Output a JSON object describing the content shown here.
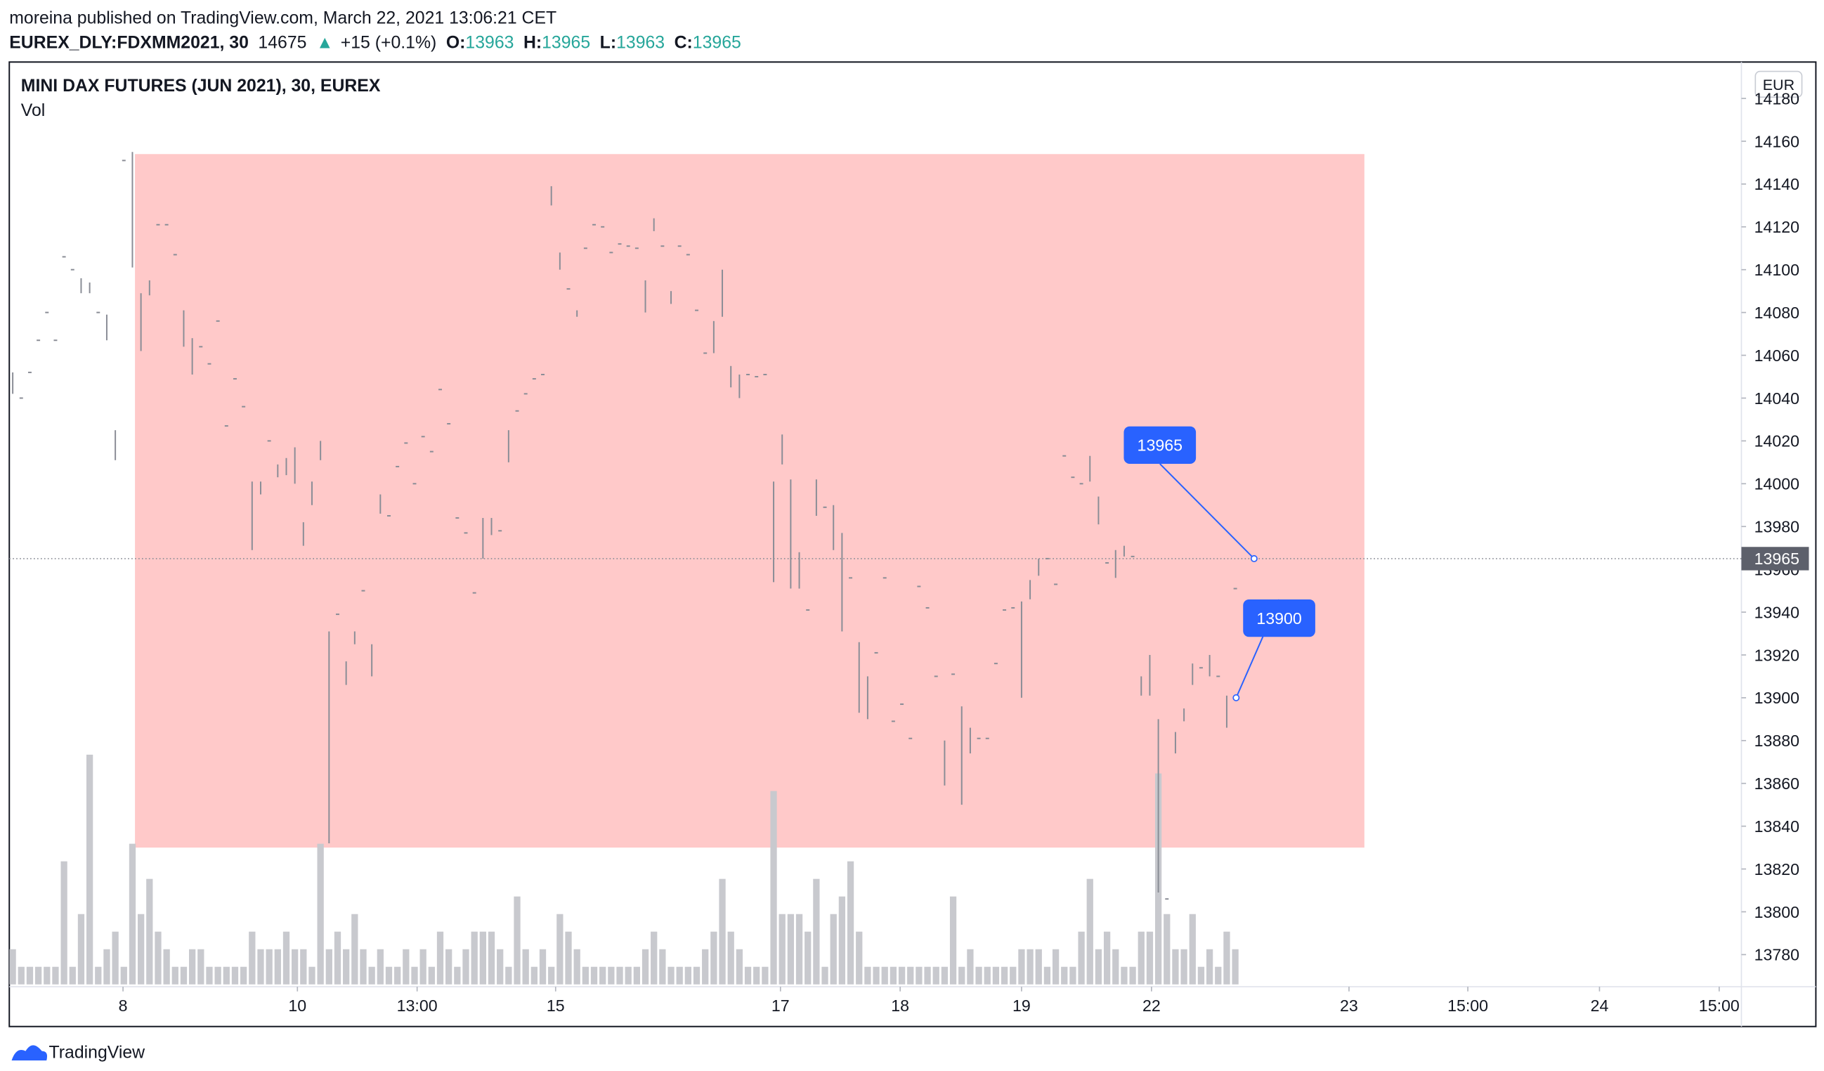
{
  "header": {
    "published": "moreina published on TradingView.com, March 22, 2021 13:06:21 CET",
    "symbol": "EUREX_DLY:FDXMM2021, 30",
    "volume": 14675,
    "arrow": "▲",
    "change": "+15 (+0.1%)",
    "open_label": "O:",
    "open": 13963,
    "high_label": "H:",
    "high": 13965,
    "low_label": "L:",
    "low": 13963,
    "close_label": "C:",
    "close": 13965
  },
  "chart_data": {
    "type": "ohlc",
    "title": "MINI DAX FUTURES (JUN 2021), 30, EUREX",
    "volume_label": "Vol",
    "currency": "EUR",
    "bar_color": "#8a8d96",
    "volume_color": "#c8c9ce",
    "high": [
      14052,
      14040,
      14052,
      14067,
      14080,
      14067,
      14106,
      14100,
      14096,
      14094,
      14080,
      14079,
      14025,
      14151,
      14155,
      14089,
      14095,
      14121,
      14121,
      14107,
      14081,
      14068,
      14064,
      14056,
      14076,
      14027,
      14049,
      14036,
      14001,
      14001,
      14020,
      14009,
      14012,
      14017,
      13982,
      14001,
      14020,
      13931,
      13939,
      13917,
      13931,
      13950,
      13925,
      13995,
      13985,
      14008,
      14019,
      14000,
      14022,
      14015,
      14044,
      14028,
      13984,
      13977,
      13949,
      13984,
      13984,
      13978,
      14025,
      14034,
      14042,
      14049,
      14051,
      14139,
      14108,
      14091,
      14081,
      14110,
      14121,
      14120,
      14108,
      14112,
      14111,
      14110,
      14095,
      14124,
      14111,
      14090,
      14111,
      14107,
      14081,
      14061,
      14076,
      14100,
      14055,
      14051,
      14051,
      14050,
      14051,
      14001,
      14023,
      14002,
      13968,
      13941,
      14002,
      13989,
      13990,
      13977,
      13956,
      13926,
      13910,
      13921,
      13956,
      13889,
      13897,
      13881,
      13952,
      13942,
      13910,
      13880,
      13911,
      13896,
      13886,
      13881,
      13881,
      13916,
      13941,
      13942,
      13945,
      13955,
      13965,
      13965,
      13953,
      14013,
      14003,
      14000,
      14013,
      13994,
      13963,
      13969,
      13971,
      13966,
      13910,
      13920,
      13890,
      13806,
      13884,
      13895,
      13916,
      13914,
      13920,
      13910,
      13901,
      13951
    ],
    "low": [
      14042,
      14040,
      14052,
      14067,
      14080,
      14067,
      14106,
      14100,
      14089,
      14089,
      14080,
      14067,
      14011,
      14151,
      14101,
      14062,
      14088,
      14121,
      14121,
      14107,
      14064,
      14051,
      14064,
      14056,
      14076,
      14027,
      14049,
      14036,
      13969,
      13995,
      14020,
      14003,
      14004,
      14000,
      13971,
      13990,
      14011,
      13832,
      13939,
      13906,
      13925,
      13950,
      13910,
      13986,
      13985,
      14008,
      14019,
      14000,
      14022,
      14015,
      14044,
      14028,
      13984,
      13977,
      13949,
      13965,
      13976,
      13978,
      14010,
      14034,
      14042,
      14049,
      14051,
      14130,
      14100,
      14091,
      14078,
      14110,
      14121,
      14120,
      14108,
      14112,
      14111,
      14110,
      14080,
      14118,
      14111,
      14084,
      14111,
      14107,
      14081,
      14061,
      14061,
      14078,
      14045,
      14040,
      14051,
      14050,
      14051,
      13954,
      14009,
      13951,
      13951,
      13941,
      13985,
      13989,
      13969,
      13931,
      13956,
      13893,
      13890,
      13921,
      13956,
      13889,
      13897,
      13881,
      13952,
      13942,
      13910,
      13859,
      13911,
      13850,
      13874,
      13881,
      13881,
      13916,
      13941,
      13942,
      13900,
      13946,
      13957,
      13965,
      13953,
      14013,
      14003,
      14000,
      14001,
      13981,
      13963,
      13956,
      13966,
      13966,
      13901,
      13901,
      13809,
      13806,
      13874,
      13889,
      13906,
      13914,
      13910,
      13910,
      13886,
      13951
    ],
    "volume": [
      30,
      15,
      15,
      15,
      15,
      15,
      105,
      15,
      60,
      196,
      15,
      30,
      45,
      15,
      120,
      60,
      90,
      45,
      30,
      15,
      15,
      30,
      30,
      15,
      15,
      15,
      15,
      15,
      45,
      30,
      30,
      30,
      45,
      30,
      30,
      15,
      120,
      30,
      45,
      30,
      60,
      30,
      15,
      30,
      15,
      15,
      30,
      15,
      30,
      15,
      45,
      30,
      15,
      30,
      45,
      45,
      45,
      30,
      15,
      75,
      30,
      15,
      30,
      15,
      60,
      45,
      30,
      15,
      15,
      15,
      15,
      15,
      15,
      15,
      30,
      45,
      30,
      15,
      15,
      15,
      15,
      30,
      45,
      90,
      45,
      30,
      15,
      15,
      15,
      165,
      60,
      60,
      60,
      45,
      90,
      15,
      60,
      75,
      105,
      45,
      15,
      15,
      15,
      15,
      15,
      15,
      15,
      15,
      15,
      15,
      75,
      15,
      30,
      15,
      15,
      15,
      15,
      15,
      30,
      30,
      30,
      15,
      30,
      15,
      15,
      45,
      90,
      30,
      45,
      30,
      15,
      15,
      45,
      45,
      180,
      60,
      30,
      30,
      60,
      15,
      30,
      15,
      45,
      30
    ],
    "xlim": [
      -0.4,
      202.2
    ],
    "ylim": [
      13765,
      14197
    ],
    "vlim": [
      0,
      789
    ],
    "yticks": [
      13780,
      13800,
      13820,
      13840,
      13860,
      13880,
      13900,
      13920,
      13940,
      13960,
      13980,
      14000,
      14020,
      14040,
      14060,
      14080,
      14100,
      14120,
      14140,
      14160,
      14180
    ],
    "xticks": [
      {
        "value": 12.9,
        "label": "8"
      },
      {
        "value": 33.3,
        "label": "10"
      },
      {
        "value": 47.3,
        "label": "13:00"
      },
      {
        "value": 63.5,
        "label": "15"
      },
      {
        "value": 89.8,
        "label": "17"
      },
      {
        "value": 103.8,
        "label": "18"
      },
      {
        "value": 118,
        "label": "19"
      },
      {
        "value": 133.2,
        "label": "22"
      },
      {
        "value": 156.3,
        "label": "23"
      },
      {
        "value": 170.2,
        "label": "15:00"
      },
      {
        "value": 185.6,
        "label": "24"
      },
      {
        "value": 199.6,
        "label": "15:00"
      }
    ],
    "highlight": {
      "from": 14.3,
      "to": 158.1,
      "low": 13830,
      "high": 14154,
      "color": "#ffc9c9"
    },
    "last_price": 13965,
    "callouts": [
      {
        "x": 145.2,
        "price": 13965,
        "label": 13965
      },
      {
        "x": 143.1,
        "price": 13900,
        "label": 13900
      }
    ],
    "callout_color": "#2962ff"
  },
  "footer": {
    "brand": "TradingView"
  }
}
